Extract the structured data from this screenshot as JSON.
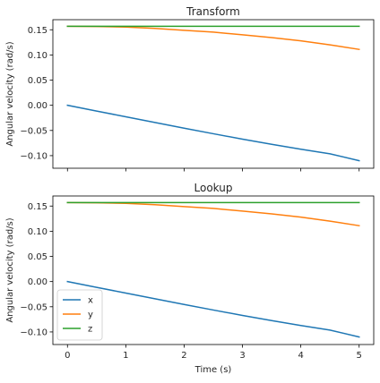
{
  "chart_data": [
    {
      "type": "line",
      "title": "Transform",
      "xlabel": "",
      "ylabel": "Angular velocity (rad/s)",
      "xlim": [
        -0.25,
        5.25
      ],
      "ylim": [
        -0.125,
        0.17
      ],
      "x_ticks": [
        0,
        1,
        2,
        3,
        4,
        5
      ],
      "x_tick_labels_visible": false,
      "y_ticks": [
        -0.1,
        -0.05,
        0.0,
        0.05,
        0.1,
        0.15
      ],
      "y_tick_labels": [
        "−0.10",
        "−0.05",
        "0.00",
        "0.05",
        "0.10",
        "0.15"
      ],
      "grid": false,
      "legend": null,
      "series": [
        {
          "color": "#1f77b4",
          "x": [
            0,
            0.5,
            1,
            1.5,
            2,
            2.5,
            3,
            3.5,
            4,
            4.5,
            5
          ],
          "y": [
            0.0,
            -0.0115,
            -0.0228,
            -0.0342,
            -0.0455,
            -0.0565,
            -0.0672,
            -0.0775,
            -0.0873,
            -0.0963,
            -0.11
          ]
        },
        {
          "color": "#ff7f0e",
          "x": [
            0,
            0.5,
            1,
            1.5,
            2,
            2.5,
            3,
            3.5,
            4,
            4.5,
            5
          ],
          "y": [
            0.157,
            0.1565,
            0.1553,
            0.1527,
            0.149,
            0.1453,
            0.14,
            0.1345,
            0.128,
            0.12,
            0.111
          ]
        },
        {
          "color": "#2ca02c",
          "x": [
            0,
            5
          ],
          "y": [
            0.157,
            0.157
          ]
        }
      ]
    },
    {
      "type": "line",
      "title": "Lookup",
      "xlabel": "Time (s)",
      "ylabel": "Angular velocity (rad/s)",
      "xlim": [
        -0.25,
        5.25
      ],
      "ylim": [
        -0.125,
        0.17
      ],
      "x_ticks": [
        0,
        1,
        2,
        3,
        4,
        5
      ],
      "x_tick_labels": [
        "0",
        "1",
        "2",
        "3",
        "4",
        "5"
      ],
      "x_tick_labels_visible": true,
      "y_ticks": [
        -0.1,
        -0.05,
        0.0,
        0.05,
        0.1,
        0.15
      ],
      "y_tick_labels": [
        "−0.10",
        "−0.05",
        "0.00",
        "0.05",
        "0.10",
        "0.15"
      ],
      "grid": false,
      "legend": "lower-left",
      "series": [
        {
          "name": "x",
          "color": "#1f77b4",
          "x": [
            0,
            0.5,
            1,
            1.5,
            2,
            2.5,
            3,
            3.5,
            4,
            4.5,
            5
          ],
          "y": [
            0.0,
            -0.0115,
            -0.0228,
            -0.0342,
            -0.0455,
            -0.0565,
            -0.0672,
            -0.0775,
            -0.0873,
            -0.0963,
            -0.11
          ]
        },
        {
          "name": "y",
          "color": "#ff7f0e",
          "x": [
            0,
            0.5,
            1,
            1.5,
            2,
            2.5,
            3,
            3.5,
            4,
            4.5,
            5
          ],
          "y": [
            0.157,
            0.1565,
            0.1553,
            0.1527,
            0.149,
            0.1453,
            0.14,
            0.1345,
            0.128,
            0.12,
            0.111
          ]
        },
        {
          "name": "z",
          "color": "#2ca02c",
          "x": [
            0,
            5
          ],
          "y": [
            0.157,
            0.157
          ]
        }
      ]
    }
  ]
}
